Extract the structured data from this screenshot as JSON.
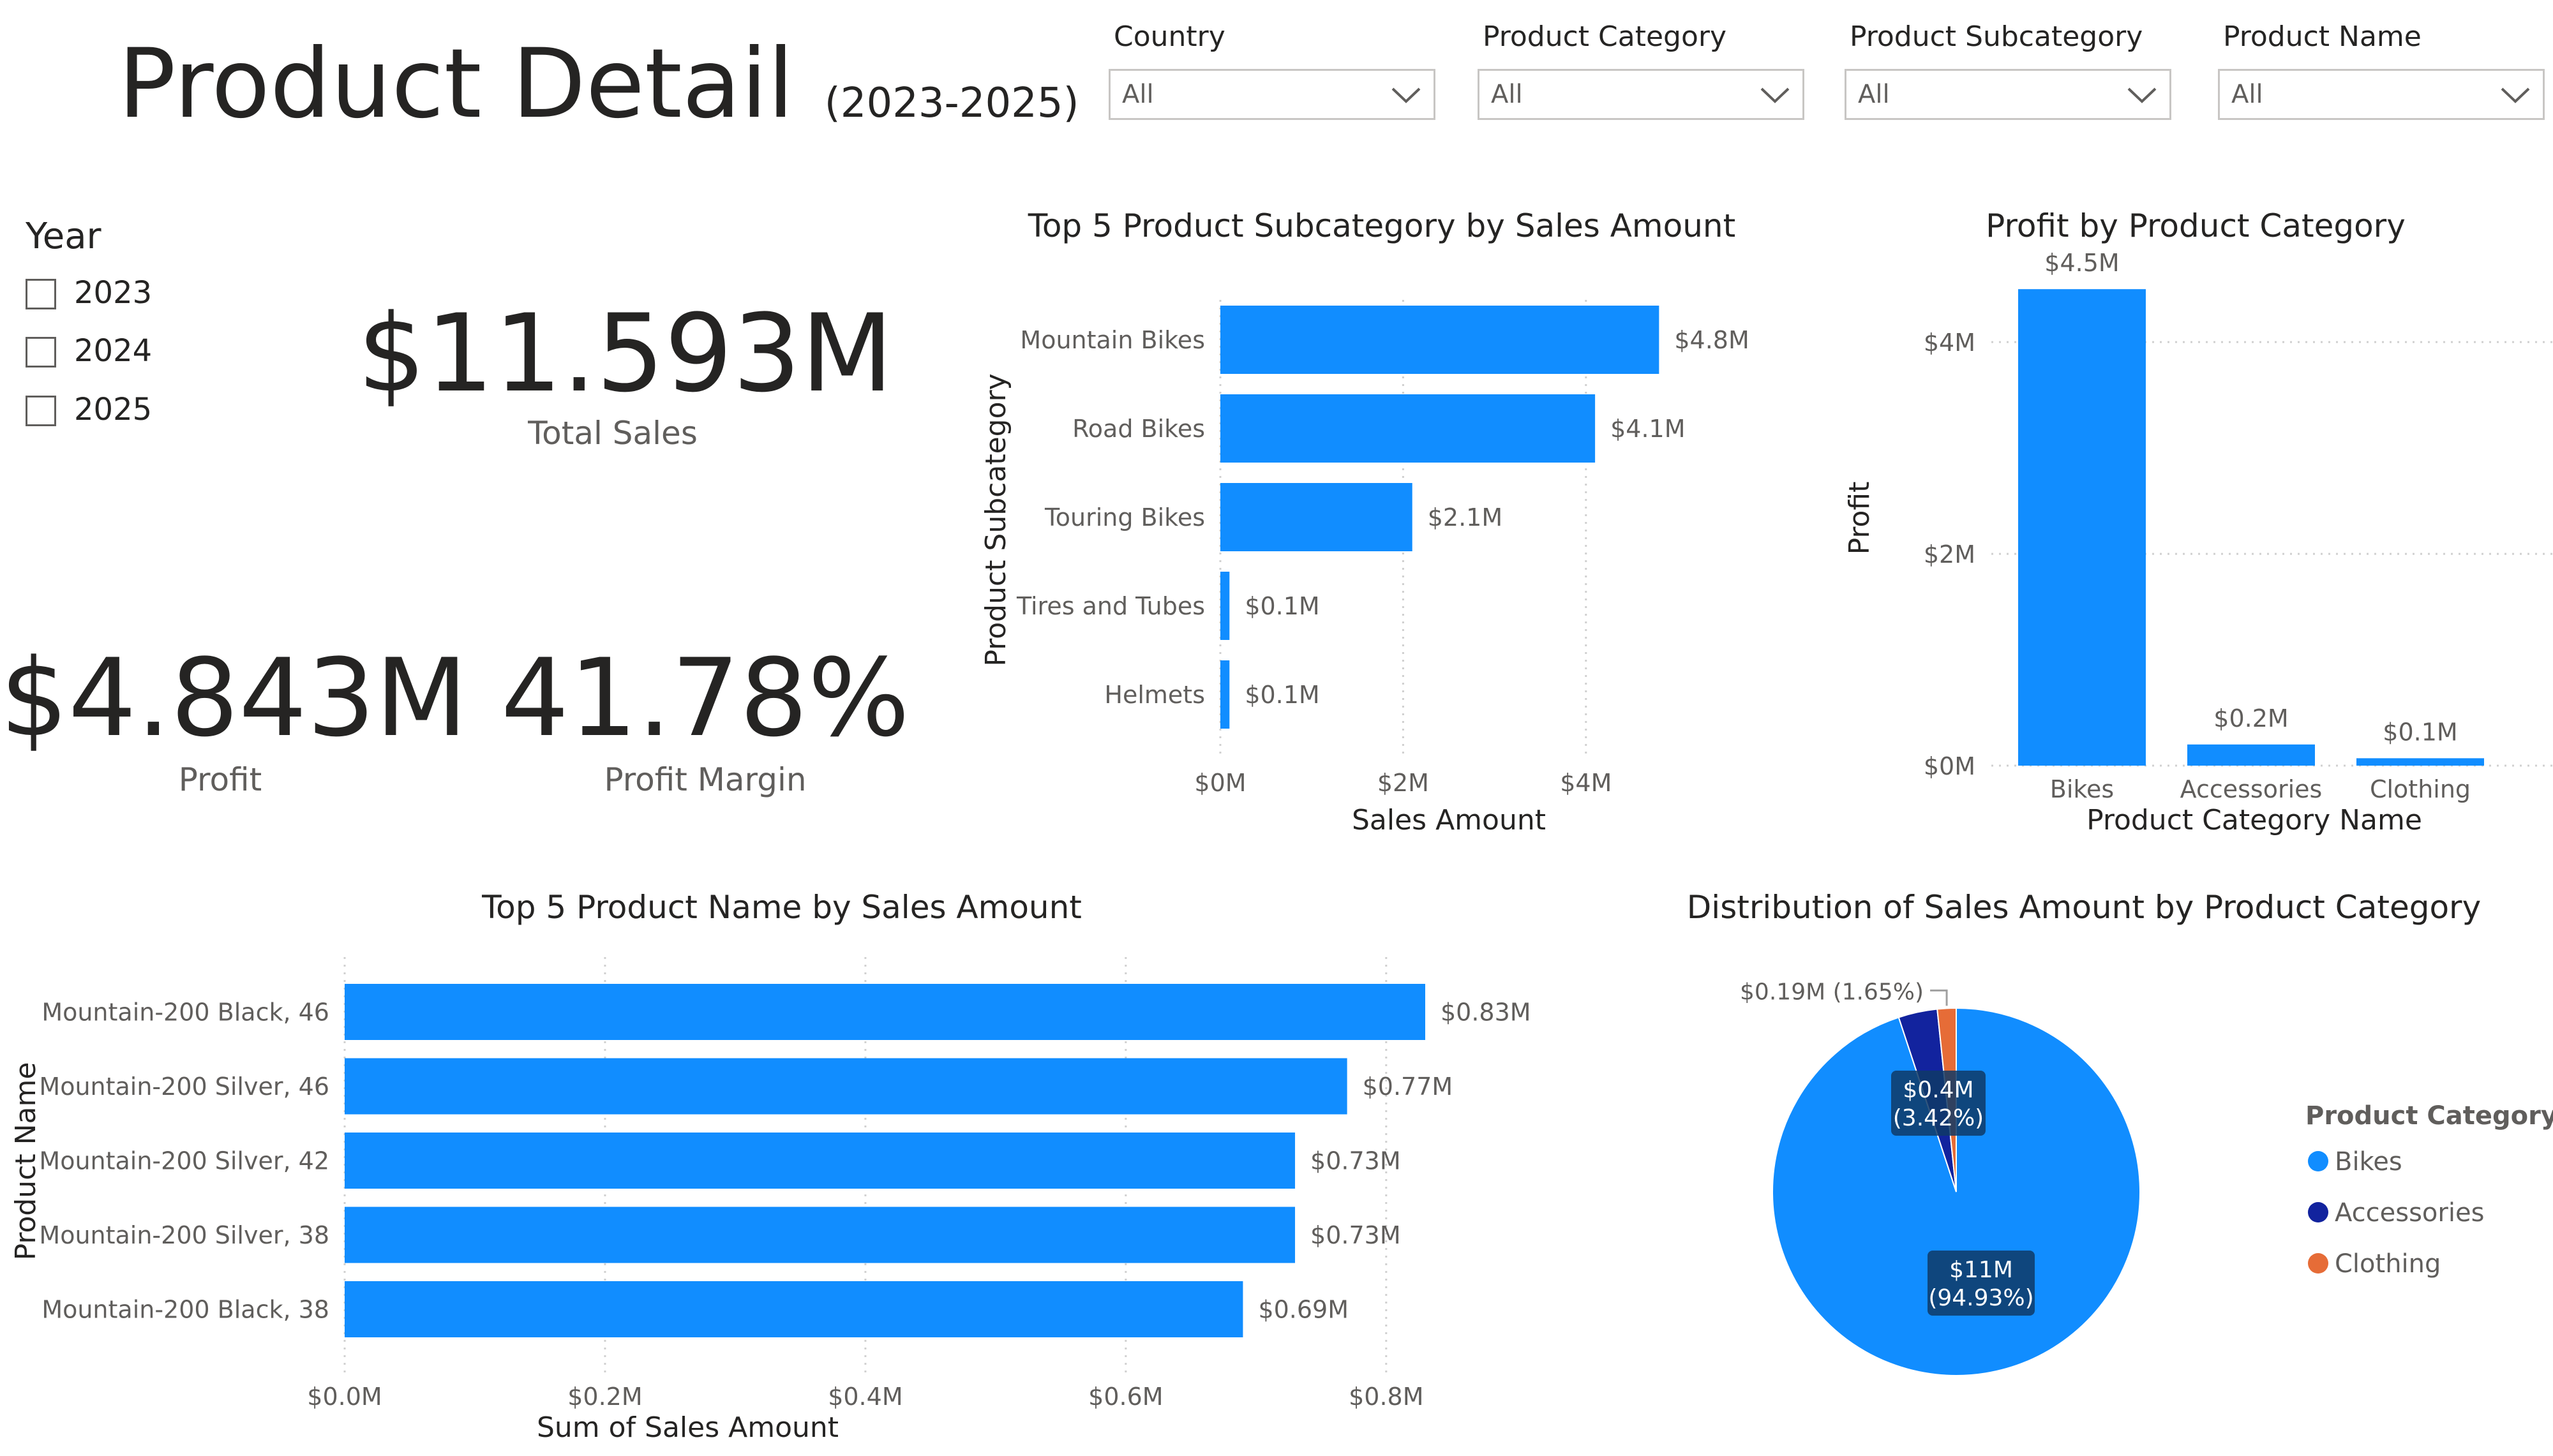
{
  "header": {
    "title": "Product Detail",
    "subtitle": "(2023-2025)"
  },
  "slicers": [
    {
      "label": "Country",
      "value": "All"
    },
    {
      "label": "Product Category",
      "value": "All"
    },
    {
      "label": "Product Subcategory",
      "value": "All"
    },
    {
      "label": "Product Name",
      "value": "All"
    }
  ],
  "year_slicer": {
    "title": "Year",
    "items": [
      "2023",
      "2024",
      "2025"
    ]
  },
  "kpis": {
    "total_sales": {
      "value": "$11.593M",
      "label": "Total Sales"
    },
    "profit": {
      "value": "$4.843M",
      "label": "Profit"
    },
    "profit_margin": {
      "value": "41.78%",
      "label": "Profit Margin"
    }
  },
  "colors": {
    "bikes": "#118DFF",
    "accessories": "#12239E",
    "clothing": "#E66C37",
    "gridline": "#d0d0d0"
  },
  "chart_data": [
    {
      "id": "subcat",
      "type": "bar",
      "orientation": "horizontal",
      "title": "Top 5 Product Subcategory by Sales Amount",
      "categories": [
        "Mountain Bikes",
        "Road Bikes",
        "Touring Bikes",
        "Tires and Tubes",
        "Helmets"
      ],
      "values": [
        4.8,
        4.1,
        2.1,
        0.1,
        0.1
      ],
      "value_labels": [
        "$4.8M",
        "$4.1M",
        "$2.1M",
        "$0.1M",
        "$0.1M"
      ],
      "xlabel": "Sales Amount",
      "ylabel": "Product Subcategory",
      "xlim": [
        0,
        5
      ],
      "ticks": [
        0,
        2,
        4
      ],
      "tick_labels": [
        "$0M",
        "$2M",
        "$4M"
      ],
      "grid": true
    },
    {
      "id": "profitcat",
      "type": "bar",
      "orientation": "vertical",
      "title": "Profit by Product Category",
      "categories": [
        "Bikes",
        "Accessories",
        "Clothing"
      ],
      "values": [
        4.5,
        0.2,
        0.07
      ],
      "value_labels": [
        "$4.5M",
        "$0.2M",
        "$0.1M"
      ],
      "xlabel": "Product Category Name",
      "ylabel": "Profit",
      "ylim": [
        0,
        4.7
      ],
      "ticks": [
        0,
        2,
        4
      ],
      "tick_labels": [
        "$0M",
        "$2M",
        "$4M"
      ],
      "grid": true
    },
    {
      "id": "prodname",
      "type": "bar",
      "orientation": "horizontal",
      "title": "Top 5 Product Name by Sales Amount",
      "categories": [
        "Mountain-200 Black, 46",
        "Mountain-200 Silver, 46",
        "Mountain-200 Silver, 42",
        "Mountain-200 Silver, 38",
        "Mountain-200 Black, 38"
      ],
      "values": [
        0.83,
        0.77,
        0.73,
        0.73,
        0.69
      ],
      "value_labels": [
        "$0.83M",
        "$0.77M",
        "$0.73M",
        "$0.73M",
        "$0.69M"
      ],
      "xlabel": "Sum of Sales Amount",
      "ylabel": "Product Name",
      "xlim": [
        0,
        0.88
      ],
      "ticks": [
        0,
        0.2,
        0.4,
        0.6,
        0.8
      ],
      "tick_labels": [
        "$0.0M",
        "$0.2M",
        "$0.4M",
        "$0.6M",
        "$0.8M"
      ],
      "grid": true
    },
    {
      "id": "dist",
      "type": "pie",
      "title": "Distribution of Sales Amount by Product Category",
      "categories": [
        "Bikes",
        "Accessories",
        "Clothing"
      ],
      "values": [
        94.93,
        3.42,
        1.65
      ],
      "value_labels": [
        "$11M (94.93%)",
        "$0.4M (3.42%)",
        "$0.19M (1.65%)"
      ],
      "label_lines": [
        [
          "$11M",
          "(94.93%)"
        ],
        [
          "$0.4M",
          "(3.42%)"
        ],
        [
          "$0.19M (1.65%)"
        ]
      ],
      "legend_title": "Product Category",
      "legend_position": "right"
    }
  ]
}
